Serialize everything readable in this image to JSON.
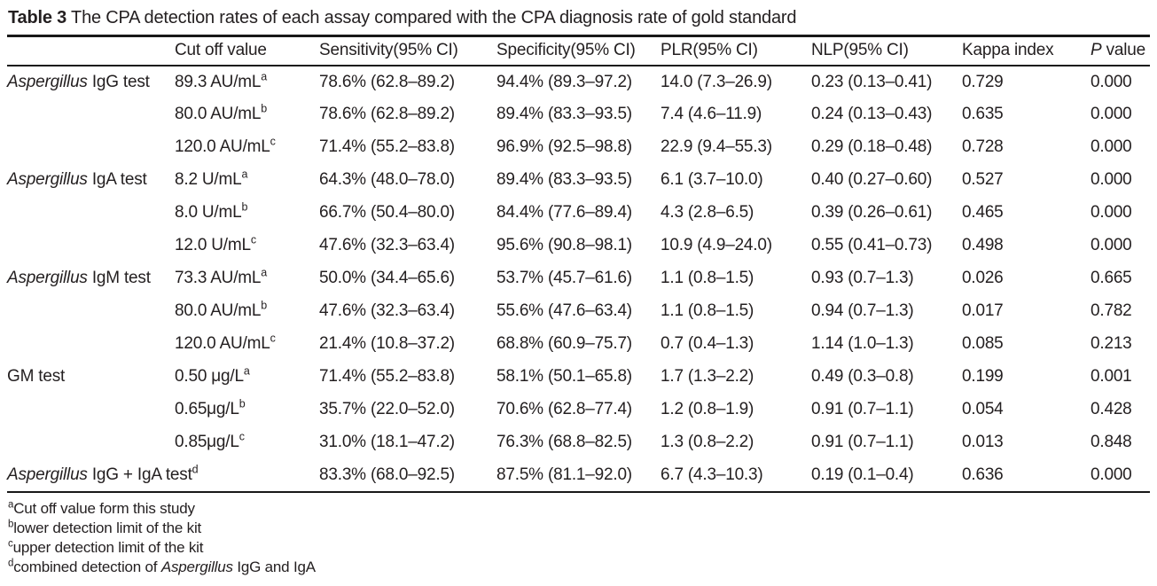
{
  "colors": {
    "text": "#231f20",
    "rule": "#181818",
    "background": "#ffffff"
  },
  "title": {
    "label": "Table 3",
    "caption": "The CPA detection rates of each assay compared with the CPA diagnosis rate of gold standard"
  },
  "header": {
    "col_label": "",
    "cutoff": "Cut off value",
    "sensitivity": "Sensitivity(95% CI)",
    "specificity": "Specificity(95% CI)",
    "plr": "PLR(95% CI)",
    "nlp": "NLP(95% CI)",
    "kappa": "Kappa index",
    "p_italic": "P",
    "p_rest": " value"
  },
  "rows": [
    {
      "label_italic": "Aspergillus",
      "label_rest": " IgG test",
      "label_sup": "",
      "cutoff": "89.3 AU/mL",
      "cutoff_sup": "a",
      "sensitivity": "78.6% (62.8–89.2)",
      "specificity": "94.4% (89.3–97.2)",
      "plr": "14.0 (7.3–26.9)",
      "nlp": "0.23 (0.13–0.41)",
      "kappa": "0.729",
      "p": "0.000"
    },
    {
      "label_italic": "",
      "label_rest": "",
      "label_sup": "",
      "cutoff": "80.0 AU/mL",
      "cutoff_sup": "b",
      "sensitivity": "78.6% (62.8–89.2)",
      "specificity": "89.4% (83.3–93.5)",
      "plr": "7.4 (4.6–11.9)",
      "nlp": "0.24 (0.13–0.43)",
      "kappa": "0.635",
      "p": "0.000"
    },
    {
      "label_italic": "",
      "label_rest": "",
      "label_sup": "",
      "cutoff": "120.0 AU/mL",
      "cutoff_sup": "c",
      "sensitivity": "71.4% (55.2–83.8)",
      "specificity": "96.9% (92.5–98.8)",
      "plr": "22.9 (9.4–55.3)",
      "nlp": "0.29 (0.18–0.48)",
      "kappa": "0.728",
      "p": "0.000"
    },
    {
      "label_italic": "Aspergillus",
      "label_rest": " IgA test",
      "label_sup": "",
      "cutoff": "8.2 U/mL",
      "cutoff_sup": "a",
      "sensitivity": "64.3% (48.0–78.0)",
      "specificity": "89.4% (83.3–93.5)",
      "plr": "6.1 (3.7–10.0)",
      "nlp": "0.40 (0.27–0.60)",
      "kappa": "0.527",
      "p": "0.000"
    },
    {
      "label_italic": "",
      "label_rest": "",
      "label_sup": "",
      "cutoff": "8.0 U/mL",
      "cutoff_sup": "b",
      "sensitivity": "66.7% (50.4–80.0)",
      "specificity": "84.4% (77.6–89.4)",
      "plr": "4.3 (2.8–6.5)",
      "nlp": "0.39 (0.26–0.61)",
      "kappa": "0.465",
      "p": "0.000"
    },
    {
      "label_italic": "",
      "label_rest": "",
      "label_sup": "",
      "cutoff": "12.0 U/mL",
      "cutoff_sup": "c",
      "sensitivity": "47.6% (32.3–63.4)",
      "specificity": "95.6% (90.8–98.1)",
      "plr": "10.9 (4.9–24.0)",
      "nlp": "0.55 (0.41–0.73)",
      "kappa": "0.498",
      "p": "0.000"
    },
    {
      "label_italic": "Aspergillus",
      "label_rest": " IgM test",
      "label_sup": "",
      "cutoff": "73.3 AU/mL",
      "cutoff_sup": "a",
      "sensitivity": "50.0% (34.4–65.6)",
      "specificity": "53.7% (45.7–61.6)",
      "plr": "1.1 (0.8–1.5)",
      "nlp": "0.93 (0.7–1.3)",
      "kappa": "0.026",
      "p": "0.665"
    },
    {
      "label_italic": "",
      "label_rest": "",
      "label_sup": "",
      "cutoff": "80.0 AU/mL",
      "cutoff_sup": "b",
      "sensitivity": "47.6% (32.3–63.4)",
      "specificity": "55.6% (47.6–63.4)",
      "plr": "1.1 (0.8–1.5)",
      "nlp": "0.94 (0.7–1.3)",
      "kappa": "0.017",
      "p": "0.782"
    },
    {
      "label_italic": "",
      "label_rest": "",
      "label_sup": "",
      "cutoff": "120.0 AU/mL",
      "cutoff_sup": "c",
      "sensitivity": "21.4% (10.8–37.2)",
      "specificity": "68.8% (60.9–75.7)",
      "plr": "0.7 (0.4–1.3)",
      "nlp": "1.14 (1.0–1.3)",
      "kappa": "0.085",
      "p": "0.213"
    },
    {
      "label_italic": "",
      "label_rest": "GM test",
      "label_sup": "",
      "cutoff": "0.50 μg/L",
      "cutoff_sup": "a",
      "sensitivity": "71.4% (55.2–83.8)",
      "specificity": "58.1% (50.1–65.8)",
      "plr": "1.7 (1.3–2.2)",
      "nlp": "0.49 (0.3–0.8)",
      "kappa": "0.199",
      "p": "0.001"
    },
    {
      "label_italic": "",
      "label_rest": "",
      "label_sup": "",
      "cutoff": "0.65μg/L",
      "cutoff_sup": "b",
      "sensitivity": "35.7% (22.0–52.0)",
      "specificity": "70.6% (62.8–77.4)",
      "plr": "1.2 (0.8–1.9)",
      "nlp": "0.91 (0.7–1.1)",
      "kappa": "0.054",
      "p": "0.428"
    },
    {
      "label_italic": "",
      "label_rest": "",
      "label_sup": "",
      "cutoff": "0.85μg/L",
      "cutoff_sup": "c",
      "sensitivity": "31.0% (18.1–47.2)",
      "specificity": "76.3% (68.8–82.5)",
      "plr": "1.3 (0.8–2.2)",
      "nlp": "0.91 (0.7–1.1)",
      "kappa": "0.013",
      "p": "0.848"
    },
    {
      "label_italic": "Aspergillus",
      "label_rest": " IgG + IgA test",
      "label_sup": "d",
      "cutoff": "",
      "cutoff_sup": "",
      "sensitivity": "83.3% (68.0–92.5)",
      "specificity": "87.5% (81.1–92.0)",
      "plr": "6.7 (4.3–10.3)",
      "nlp": "0.19 (0.1–0.4)",
      "kappa": "0.636",
      "p": "0.000"
    }
  ],
  "footnotes": [
    {
      "sup": "a",
      "text_pre": "Cut off value form this study",
      "italic": "",
      "text_post": ""
    },
    {
      "sup": "b",
      "text_pre": "lower detection limit of the kit",
      "italic": "",
      "text_post": ""
    },
    {
      "sup": "c",
      "text_pre": "upper detection limit of the kit",
      "italic": "",
      "text_post": ""
    },
    {
      "sup": "d",
      "text_pre": "combined detection of ",
      "italic": "Aspergillus",
      "text_post": " IgG and IgA"
    }
  ]
}
